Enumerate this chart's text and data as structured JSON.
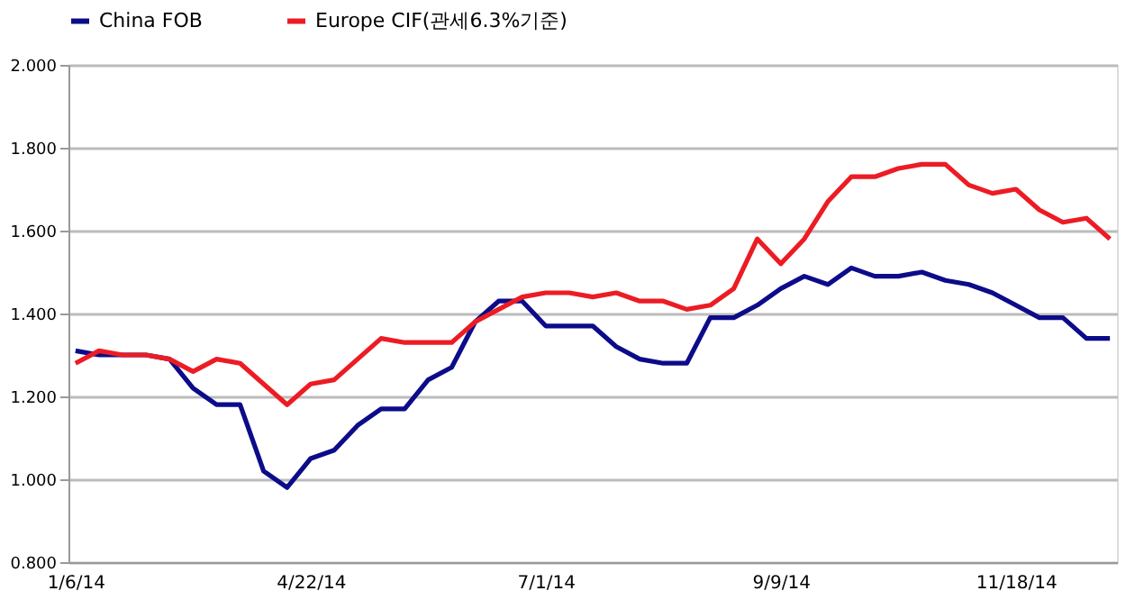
{
  "chart_data": {
    "type": "line",
    "categories": [
      "1/6/14",
      null,
      null,
      null,
      null,
      null,
      null,
      null,
      null,
      null,
      "4/22/14",
      null,
      null,
      null,
      null,
      null,
      null,
      null,
      null,
      null,
      "7/1/14",
      null,
      null,
      null,
      null,
      null,
      null,
      null,
      null,
      null,
      "9/9/14",
      null,
      null,
      null,
      null,
      null,
      null,
      null,
      null,
      null,
      "11/18/14",
      null,
      null,
      null,
      null
    ],
    "series": [
      {
        "name": "China FOB",
        "color": "#0c0c8a",
        "values": [
          1.31,
          1.3,
          1.3,
          1.3,
          1.29,
          1.22,
          1.18,
          1.18,
          1.02,
          0.98,
          1.05,
          1.07,
          1.13,
          1.17,
          1.17,
          1.24,
          1.27,
          1.38,
          1.43,
          1.43,
          1.37,
          1.37,
          1.37,
          1.32,
          1.29,
          1.28,
          1.28,
          1.39,
          1.39,
          1.42,
          1.46,
          1.49,
          1.47,
          1.51,
          1.49,
          1.49,
          1.5,
          1.48,
          1.47,
          1.45,
          1.42,
          1.39,
          1.39,
          1.34,
          1.34
        ]
      },
      {
        "name": "Europe CIF(관세6.3%기준)",
        "color": "#ec1c24",
        "values": [
          1.28,
          1.31,
          1.3,
          1.3,
          1.29,
          1.26,
          1.29,
          1.28,
          1.23,
          1.18,
          1.23,
          1.24,
          1.29,
          1.34,
          1.33,
          1.33,
          1.33,
          1.38,
          1.41,
          1.44,
          1.45,
          1.45,
          1.44,
          1.45,
          1.43,
          1.43,
          1.41,
          1.42,
          1.46,
          1.58,
          1.52,
          1.58,
          1.67,
          1.73,
          1.73,
          1.75,
          1.76,
          1.76,
          1.71,
          1.69,
          1.7,
          1.65,
          1.62,
          1.63,
          1.58
        ]
      }
    ],
    "ylim": [
      0.8,
      2.0
    ],
    "yticks": [
      {
        "value": 0.8,
        "label": "0.800"
      },
      {
        "value": 1.0,
        "label": "1.000"
      },
      {
        "value": 1.2,
        "label": "1.200"
      },
      {
        "value": 1.4,
        "label": "1.400"
      },
      {
        "value": 1.6,
        "label": "1.600"
      },
      {
        "value": 1.8,
        "label": "1.800"
      },
      {
        "value": 2.0,
        "label": "2.000"
      }
    ],
    "grid": "y",
    "legend": "top",
    "marker": "none",
    "line_style": "solid"
  }
}
